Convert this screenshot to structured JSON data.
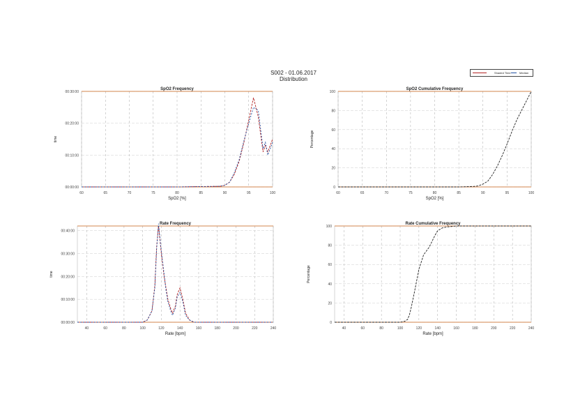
{
  "page": {
    "title_line1": "S002 - 01.06.2017",
    "title_line2": "Distribution"
  },
  "legend": {
    "item1": "Shaded Time",
    "item2": "Median"
  },
  "chart_data": [
    {
      "type": "line",
      "title": "SpO2 Frequency",
      "xlabel": "SpO2 [%]",
      "ylabel": "time",
      "xlim": [
        60,
        100
      ],
      "ylim": [
        0,
        30
      ],
      "xticks": [
        "60",
        "65",
        "70",
        "75",
        "80",
        "85",
        "90",
        "95",
        "100"
      ],
      "yticks": [
        "00:00:00",
        "00:10:00",
        "00:20:00",
        "00:30:00"
      ],
      "ytick_values": [
        0,
        10,
        20,
        30
      ],
      "series": [
        {
          "x": [
            60,
            70,
            80,
            85,
            89,
            90,
            91,
            92,
            93,
            94,
            95,
            96,
            97,
            98,
            98.5,
            99,
            99.5,
            100
          ],
          "y": [
            0,
            0,
            0,
            0.1,
            0.2,
            0.5,
            1.5,
            4,
            8,
            14,
            21,
            28,
            22,
            11,
            13,
            11,
            13,
            15
          ],
          "color": "#b22222"
        },
        {
          "x": [
            60,
            70,
            80,
            85,
            89,
            90,
            91,
            92,
            93,
            94,
            95,
            96,
            97,
            98,
            98.5,
            99,
            99.5,
            100
          ],
          "y": [
            0,
            0,
            0,
            0.1,
            0.2,
            0.5,
            1.5,
            4.5,
            8.5,
            14.5,
            20,
            25,
            24,
            12,
            14,
            10,
            12,
            14
          ],
          "color": "#1f4fa0"
        }
      ]
    },
    {
      "type": "line",
      "title": "SpO2 Cumulative Frequency",
      "xlabel": "SpO2 [%]",
      "ylabel": "Percentage",
      "xlim": [
        60,
        100
      ],
      "ylim": [
        0,
        100
      ],
      "xticks": [
        "60",
        "65",
        "70",
        "75",
        "80",
        "85",
        "90",
        "95",
        "100"
      ],
      "yticks": [
        "0",
        "20",
        "40",
        "60",
        "80",
        "100"
      ],
      "ytick_values": [
        0,
        20,
        40,
        60,
        80,
        100
      ],
      "series": [
        {
          "x": [
            60,
            80,
            85,
            88,
            89,
            90,
            91,
            92,
            93,
            94,
            95,
            96,
            97,
            98,
            99,
            100
          ],
          "y": [
            0,
            0,
            0,
            0.5,
            1,
            3,
            6,
            13,
            22,
            33,
            45,
            58,
            70,
            80,
            90,
            100
          ],
          "color": "#222222"
        }
      ]
    },
    {
      "type": "line",
      "title": "Rate Frequency",
      "xlabel": "Rate [bpm]",
      "ylabel": "time",
      "xlim": [
        30,
        240
      ],
      "ylim": [
        0,
        42
      ],
      "xticks": [
        "40",
        "60",
        "80",
        "100",
        "120",
        "140",
        "160",
        "180",
        "200",
        "220",
        "240"
      ],
      "yticks": [
        "00:00:00",
        "00:10:00",
        "00:20:00",
        "00:30:00",
        "00:40:00"
      ],
      "ytick_values": [
        0,
        10,
        20,
        30,
        40
      ],
      "series": [
        {
          "x": [
            30,
            100,
            105,
            110,
            113,
            115,
            117,
            120,
            123,
            125,
            127,
            130,
            132,
            135,
            137,
            140,
            143,
            146,
            150,
            155,
            240
          ],
          "y": [
            0,
            0,
            1,
            5,
            16,
            33,
            42,
            30,
            20,
            15,
            10,
            6,
            4,
            7,
            12,
            15,
            10,
            4,
            1,
            0,
            0
          ],
          "color": "#b22222"
        },
        {
          "x": [
            30,
            100,
            105,
            110,
            113,
            115,
            117,
            120,
            123,
            125,
            127,
            130,
            132,
            135,
            137,
            140,
            143,
            146,
            150,
            155,
            240
          ],
          "y": [
            0,
            0,
            1,
            5,
            15,
            32,
            43,
            31,
            21,
            14,
            9,
            5,
            3,
            6,
            11,
            13,
            9,
            3,
            1,
            0,
            0
          ],
          "color": "#1f4fa0"
        }
      ]
    },
    {
      "type": "line",
      "title": "Rate Cumulative Frequency",
      "xlabel": "Rate [bpm]",
      "ylabel": "Percentage",
      "xlim": [
        30,
        240
      ],
      "ylim": [
        0,
        100
      ],
      "xticks": [
        "40",
        "60",
        "80",
        "100",
        "120",
        "140",
        "160",
        "180",
        "200",
        "220",
        "240"
      ],
      "yticks": [
        "0",
        "20",
        "40",
        "60",
        "80",
        "100"
      ],
      "ytick_values": [
        0,
        20,
        40,
        60,
        80,
        100
      ],
      "series": [
        {
          "x": [
            30,
            100,
            105,
            108,
            110,
            112,
            115,
            118,
            120,
            123,
            125,
            128,
            131,
            134,
            137,
            140,
            145,
            150,
            160,
            240
          ],
          "y": [
            0,
            0,
            1,
            3,
            8,
            16,
            30,
            45,
            55,
            64,
            70,
            74,
            78,
            84,
            90,
            95,
            98,
            99,
            100,
            100
          ],
          "color": "#222222"
        }
      ]
    }
  ]
}
